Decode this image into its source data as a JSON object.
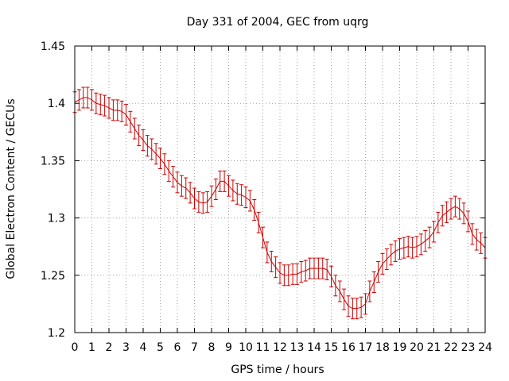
{
  "chart_data": {
    "type": "line",
    "title": "Day 331 of 2004, GEC from uqrg",
    "xlabel": "GPS time / hours",
    "ylabel": "Global Electron Content / GECUs",
    "xlim": [
      0,
      24
    ],
    "ylim": [
      1.2,
      1.45
    ],
    "xticks": [
      0,
      1,
      2,
      3,
      4,
      5,
      6,
      7,
      8,
      9,
      10,
      11,
      12,
      13,
      14,
      15,
      16,
      17,
      18,
      19,
      20,
      21,
      22,
      23,
      24
    ],
    "yticks": [
      1.2,
      1.25,
      1.3,
      1.35,
      1.4,
      1.45
    ],
    "ytick_labels": [
      "1.2",
      "1.25",
      "1.3",
      "1.35",
      "1.4",
      "1.45"
    ],
    "grid": true,
    "series": [
      {
        "color": "#cc0000",
        "error": 0.009,
        "x": [
          0.0,
          0.25,
          0.5,
          0.75,
          1.0,
          1.25,
          1.5,
          1.75,
          2.0,
          2.25,
          2.5,
          2.75,
          3.0,
          3.25,
          3.5,
          3.75,
          4.0,
          4.25,
          4.5,
          4.75,
          5.0,
          5.25,
          5.5,
          5.75,
          6.0,
          6.25,
          6.5,
          6.75,
          7.0,
          7.25,
          7.5,
          7.75,
          8.0,
          8.25,
          8.5,
          8.75,
          9.0,
          9.25,
          9.5,
          9.75,
          10.0,
          10.25,
          10.5,
          10.75,
          11.0,
          11.25,
          11.5,
          11.75,
          12.0,
          12.25,
          12.5,
          12.75,
          13.0,
          13.25,
          13.5,
          13.75,
          14.0,
          14.25,
          14.5,
          14.75,
          15.0,
          15.25,
          15.5,
          15.75,
          16.0,
          16.25,
          16.5,
          16.75,
          17.0,
          17.25,
          17.5,
          17.75,
          18.0,
          18.25,
          18.5,
          18.75,
          19.0,
          19.25,
          19.5,
          19.75,
          20.0,
          20.25,
          20.5,
          20.75,
          21.0,
          21.25,
          21.5,
          21.75,
          22.0,
          22.25,
          22.5,
          22.75,
          23.0,
          23.25,
          23.5,
          23.75,
          24.0
        ],
        "y": [
          1.401,
          1.403,
          1.405,
          1.405,
          1.403,
          1.4,
          1.399,
          1.398,
          1.396,
          1.394,
          1.394,
          1.393,
          1.39,
          1.384,
          1.378,
          1.372,
          1.368,
          1.363,
          1.36,
          1.356,
          1.352,
          1.347,
          1.341,
          1.336,
          1.331,
          1.328,
          1.326,
          1.322,
          1.317,
          1.314,
          1.313,
          1.314,
          1.319,
          1.325,
          1.332,
          1.332,
          1.328,
          1.324,
          1.321,
          1.32,
          1.318,
          1.315,
          1.307,
          1.296,
          1.283,
          1.27,
          1.262,
          1.257,
          1.252,
          1.25,
          1.25,
          1.251,
          1.251,
          1.253,
          1.254,
          1.256,
          1.256,
          1.256,
          1.256,
          1.255,
          1.249,
          1.241,
          1.236,
          1.229,
          1.223,
          1.221,
          1.221,
          1.222,
          1.225,
          1.236,
          1.244,
          1.253,
          1.26,
          1.264,
          1.268,
          1.271,
          1.273,
          1.274,
          1.275,
          1.274,
          1.275,
          1.277,
          1.28,
          1.283,
          1.288,
          1.296,
          1.302,
          1.305,
          1.308,
          1.31,
          1.308,
          1.304,
          1.297,
          1.286,
          1.281,
          1.278,
          1.274
        ]
      }
    ]
  }
}
